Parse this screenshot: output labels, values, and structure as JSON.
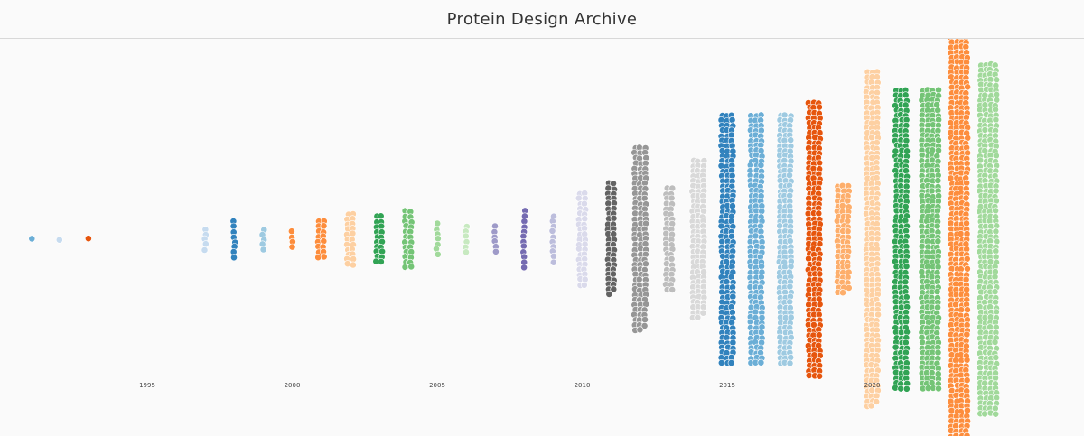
{
  "header": {
    "title": "Protein Design Archive"
  },
  "chart_data": {
    "type": "scatter",
    "subtype": "beeswarm",
    "title": "",
    "xlabel": "",
    "ylabel": "",
    "xlim": [
      1990,
      2026
    ],
    "x_ticks": [
      1995,
      2000,
      2005,
      2010,
      2015,
      2020
    ],
    "grid": false,
    "legend": "none",
    "series": [
      {
        "year": 1991,
        "count": 1,
        "color": "#6baed6"
      },
      {
        "year": 1992,
        "count": 1,
        "color": "#c6dbef"
      },
      {
        "year": 1993,
        "count": 1,
        "color": "#e6550d"
      },
      {
        "year": 1997,
        "count": 5,
        "color": "#c6dbef"
      },
      {
        "year": 1998,
        "count": 8,
        "color": "#3182bd"
      },
      {
        "year": 1999,
        "count": 5,
        "color": "#9ecae1"
      },
      {
        "year": 2000,
        "count": 4,
        "color": "#fd8d3c"
      },
      {
        "year": 2001,
        "count": 16,
        "color": "#fd8d3c"
      },
      {
        "year": 2002,
        "count": 22,
        "color": "#fdd0a2"
      },
      {
        "year": 2003,
        "count": 20,
        "color": "#31a354"
      },
      {
        "year": 2004,
        "count": 24,
        "color": "#74c476"
      },
      {
        "year": 2005,
        "count": 7,
        "color": "#a1d99b"
      },
      {
        "year": 2006,
        "count": 6,
        "color": "#c7e9c0"
      },
      {
        "year": 2007,
        "count": 6,
        "color": "#9e9ac8"
      },
      {
        "year": 2008,
        "count": 12,
        "color": "#756bb1"
      },
      {
        "year": 2009,
        "count": 10,
        "color": "#bcbddc"
      },
      {
        "year": 2010,
        "count": 38,
        "color": "#dadaeb"
      },
      {
        "year": 2011,
        "count": 45,
        "color": "#636363"
      },
      {
        "year": 2012,
        "count": 110,
        "color": "#969696"
      },
      {
        "year": 2013,
        "count": 42,
        "color": "#bdbdbd"
      },
      {
        "year": 2014,
        "count": 95,
        "color": "#d9d9d9"
      },
      {
        "year": 2015,
        "count": 150,
        "color": "#3182bd"
      },
      {
        "year": 2016,
        "count": 150,
        "color": "#6baed6"
      },
      {
        "year": 2017,
        "count": 150,
        "color": "#9ecae1"
      },
      {
        "year": 2018,
        "count": 165,
        "color": "#e6550d"
      },
      {
        "year": 2019,
        "count": 65,
        "color": "#fdae6b"
      },
      {
        "year": 2020,
        "count": 200,
        "color": "#fdd0a2"
      },
      {
        "year": 2021,
        "count": 180,
        "color": "#31a354"
      },
      {
        "year": 2022,
        "count": 240,
        "color": "#74c476"
      },
      {
        "year": 2023,
        "count": 330,
        "color": "#fd8d3c"
      },
      {
        "year": 2024,
        "count": 280,
        "color": "#a1d99b"
      }
    ]
  }
}
